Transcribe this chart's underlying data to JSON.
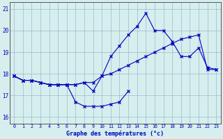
{
  "hours": [
    0,
    1,
    2,
    3,
    4,
    5,
    6,
    7,
    8,
    9,
    10,
    11,
    12,
    13,
    14,
    15,
    16,
    17,
    18,
    19,
    20,
    21,
    22,
    23
  ],
  "line_dip": [
    17.9,
    17.7,
    17.7,
    17.6,
    17.5,
    17.5,
    17.5,
    16.7,
    16.5,
    16.5,
    16.5,
    16.6,
    16.7,
    17.2,
    null,
    null,
    null,
    null,
    null,
    null,
    null,
    null,
    null,
    null
  ],
  "line_grad": [
    17.9,
    17.7,
    17.7,
    17.6,
    17.5,
    17.5,
    17.5,
    17.5,
    17.6,
    17.6,
    17.9,
    18.0,
    18.2,
    18.4,
    18.6,
    18.8,
    19.0,
    19.2,
    19.4,
    19.6,
    19.7,
    19.8,
    18.2,
    18.2
  ],
  "line_peak": [
    17.9,
    17.7,
    17.7,
    17.6,
    17.5,
    17.5,
    17.5,
    17.5,
    17.6,
    17.2,
    17.9,
    18.8,
    19.3,
    19.8,
    20.2,
    20.8,
    20.0,
    20.0,
    19.5,
    18.8,
    18.8,
    19.2,
    18.3,
    18.2
  ],
  "xlabel": "Graphe des températures (°c)",
  "ylabel_ticks": [
    16,
    17,
    18,
    19,
    20,
    21
  ],
  "xlim": [
    -0.5,
    23.5
  ],
  "ylim": [
    15.7,
    21.3
  ],
  "bg_color": "#d6eeee",
  "line_color": "#0000bb",
  "grid_color": "#99bbcc",
  "axis_color": "#555555",
  "text_color": "#0000bb",
  "fig_width": 3.2,
  "fig_height": 2.0,
  "dpi": 100
}
